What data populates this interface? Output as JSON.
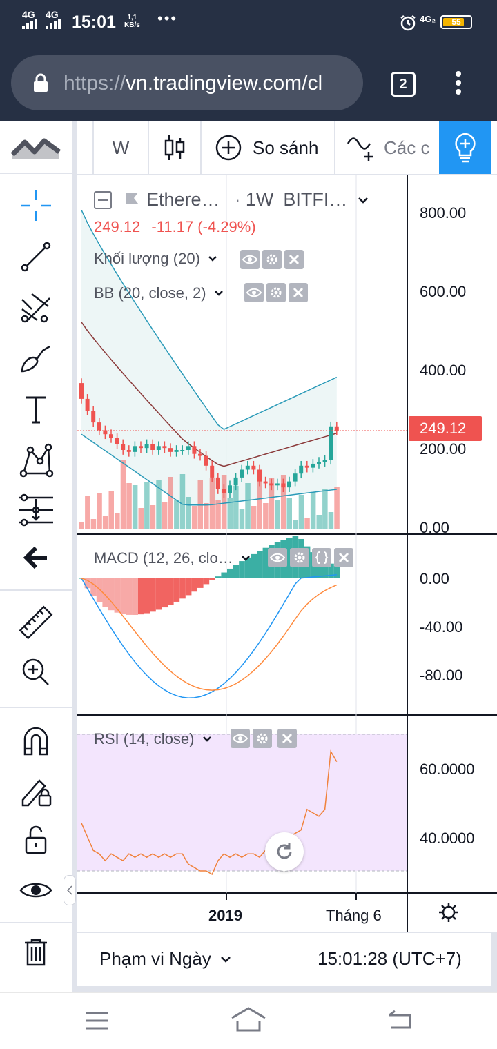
{
  "status_bar": {
    "network_1": "4G",
    "network_2": "4G",
    "time": "15:01",
    "speed_value": "1,1",
    "speed_unit": "KB/s",
    "more": "•••",
    "network_right": "4G₂",
    "battery": "55"
  },
  "browser": {
    "url_scheme": "https://",
    "url_host": "vn.tradingview.com/cl",
    "tab_count": "2"
  },
  "toolbar": {
    "interval": "W",
    "compare_label": "So sánh",
    "indicators_label": "Các c"
  },
  "legend": {
    "symbol": "Ethere…",
    "sep": "·",
    "timeframe": "1W",
    "exchange": "BITFI…",
    "last_price": "249.12",
    "change": "-11.17 (-4.29%)",
    "volume_label": "Khối lượng (20)",
    "bb_label": "BB (20, close, 2)",
    "macd_label": "MACD (12, 26, clo…",
    "rsi_label": "RSI (14, close)"
  },
  "price_axis": {
    "main": [
      "800.00",
      "600.00",
      "400.00",
      "200.00",
      "0.00"
    ],
    "current_price": "249.12",
    "macd": [
      "0.00",
      "-40.00",
      "-80.00"
    ],
    "rsi": [
      "60.0000",
      "40.0000"
    ]
  },
  "time_axis": {
    "labels": [
      "2019",
      "Tháng 6"
    ]
  },
  "footer": {
    "date_range": "Phạm vi Ngày",
    "clock": "15:01:28 (UTC+7)"
  },
  "colors": {
    "up": "#26a69a",
    "down": "#ef5350",
    "accent": "#2196f3",
    "bb_basis": "#8b3a3a",
    "bb_band": "#2a9ab8",
    "macd_line": "#2196f3",
    "signal_line": "#ff8a3d",
    "rsi_line": "#f0823c",
    "rsi_bg": "#f3e5fd"
  }
}
